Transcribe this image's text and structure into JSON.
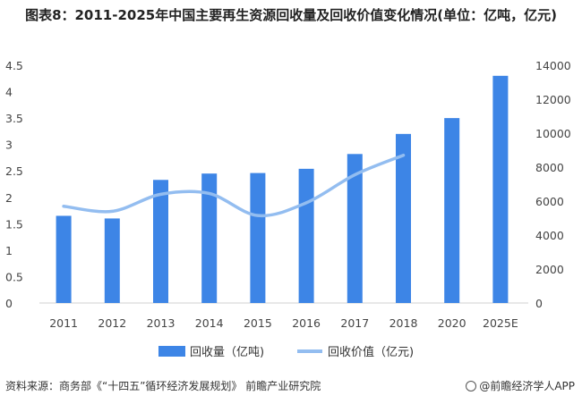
{
  "title": "图表8：2011-2025年中国主要再生资源回收量及回收价值变化情况(单位：亿吨，亿元)",
  "chart_data": {
    "type": "bar+line",
    "categories": [
      "2011",
      "2012",
      "2013",
      "2014",
      "2015",
      "2016",
      "2017",
      "2018",
      "2020",
      "2025E"
    ],
    "series": [
      {
        "name": "回收量（亿吨)",
        "type": "bar",
        "axis": "left",
        "color": "#3d85e6",
        "values": [
          1.65,
          1.6,
          2.33,
          2.45,
          2.46,
          2.54,
          2.82,
          3.2,
          3.5,
          4.3
        ]
      },
      {
        "name": "回收价值（亿元)",
        "type": "line",
        "axis": "right",
        "color": "#93bdf0",
        "values": [
          5700,
          5400,
          6400,
          6450,
          5150,
          5900,
          7550,
          8700,
          null,
          null
        ]
      }
    ],
    "y_left": {
      "min": 0,
      "max": 4.5,
      "ticks": [
        "0",
        "0.5",
        "1",
        "1.5",
        "2",
        "2.5",
        "3",
        "3.5",
        "4",
        "4.5"
      ]
    },
    "y_right": {
      "min": 0,
      "max": 14000,
      "ticks": [
        "0",
        "2000",
        "4000",
        "6000",
        "8000",
        "10000",
        "12000",
        "14000"
      ]
    },
    "legend_position": "bottom",
    "grid": false
  },
  "footer": {
    "source": "资料来源：商务部《“十四五”循环经济发展规划》 前瞻产业研究院",
    "brand": "@前瞻经济学人APP",
    "brand_icon": "brand-logo-icon"
  }
}
